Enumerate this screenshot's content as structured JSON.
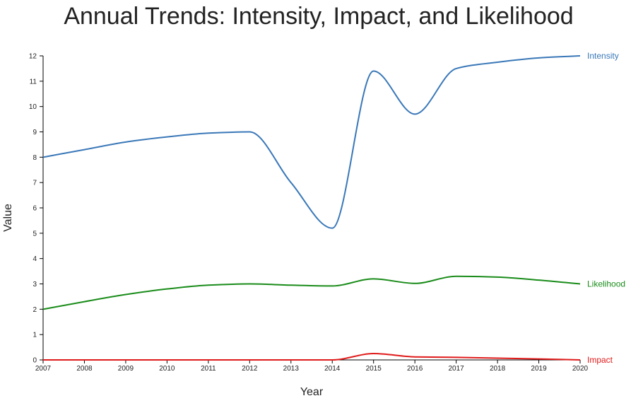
{
  "chart_data": {
    "type": "line",
    "title": "Annual Trends: Intensity, Impact, and Likelihood",
    "xlabel": "Year",
    "ylabel": "Value",
    "x": [
      2007,
      2008,
      2009,
      2010,
      2011,
      2012,
      2013,
      2014,
      2015,
      2016,
      2017,
      2018,
      2019,
      2020
    ],
    "xlim": [
      2007,
      2020
    ],
    "ylim": [
      0,
      12
    ],
    "y_ticks": [
      0,
      1,
      2,
      3,
      4,
      5,
      6,
      7,
      8,
      9,
      10,
      11,
      12
    ],
    "grid": false,
    "legend": "inline labels at right end of each line",
    "series": [
      {
        "name": "Intensity",
        "color": "#3a78b8",
        "values": [
          8.0,
          8.3,
          8.6,
          8.8,
          8.95,
          9.0,
          7.0,
          5.2,
          11.4,
          9.7,
          11.5,
          11.75,
          11.92,
          12.0
        ]
      },
      {
        "name": "Likelihood",
        "color": "#1a8c1a",
        "values": [
          2.0,
          2.3,
          2.58,
          2.8,
          2.95,
          3.0,
          2.95,
          2.92,
          3.2,
          3.02,
          3.3,
          3.27,
          3.15,
          3.0
        ]
      },
      {
        "name": "Impact",
        "color": "#e01b1b",
        "values": [
          0,
          0,
          0,
          0,
          0,
          0,
          0,
          0,
          0.25,
          0.12,
          0.1,
          0.07,
          0.04,
          0.0
        ]
      }
    ]
  }
}
